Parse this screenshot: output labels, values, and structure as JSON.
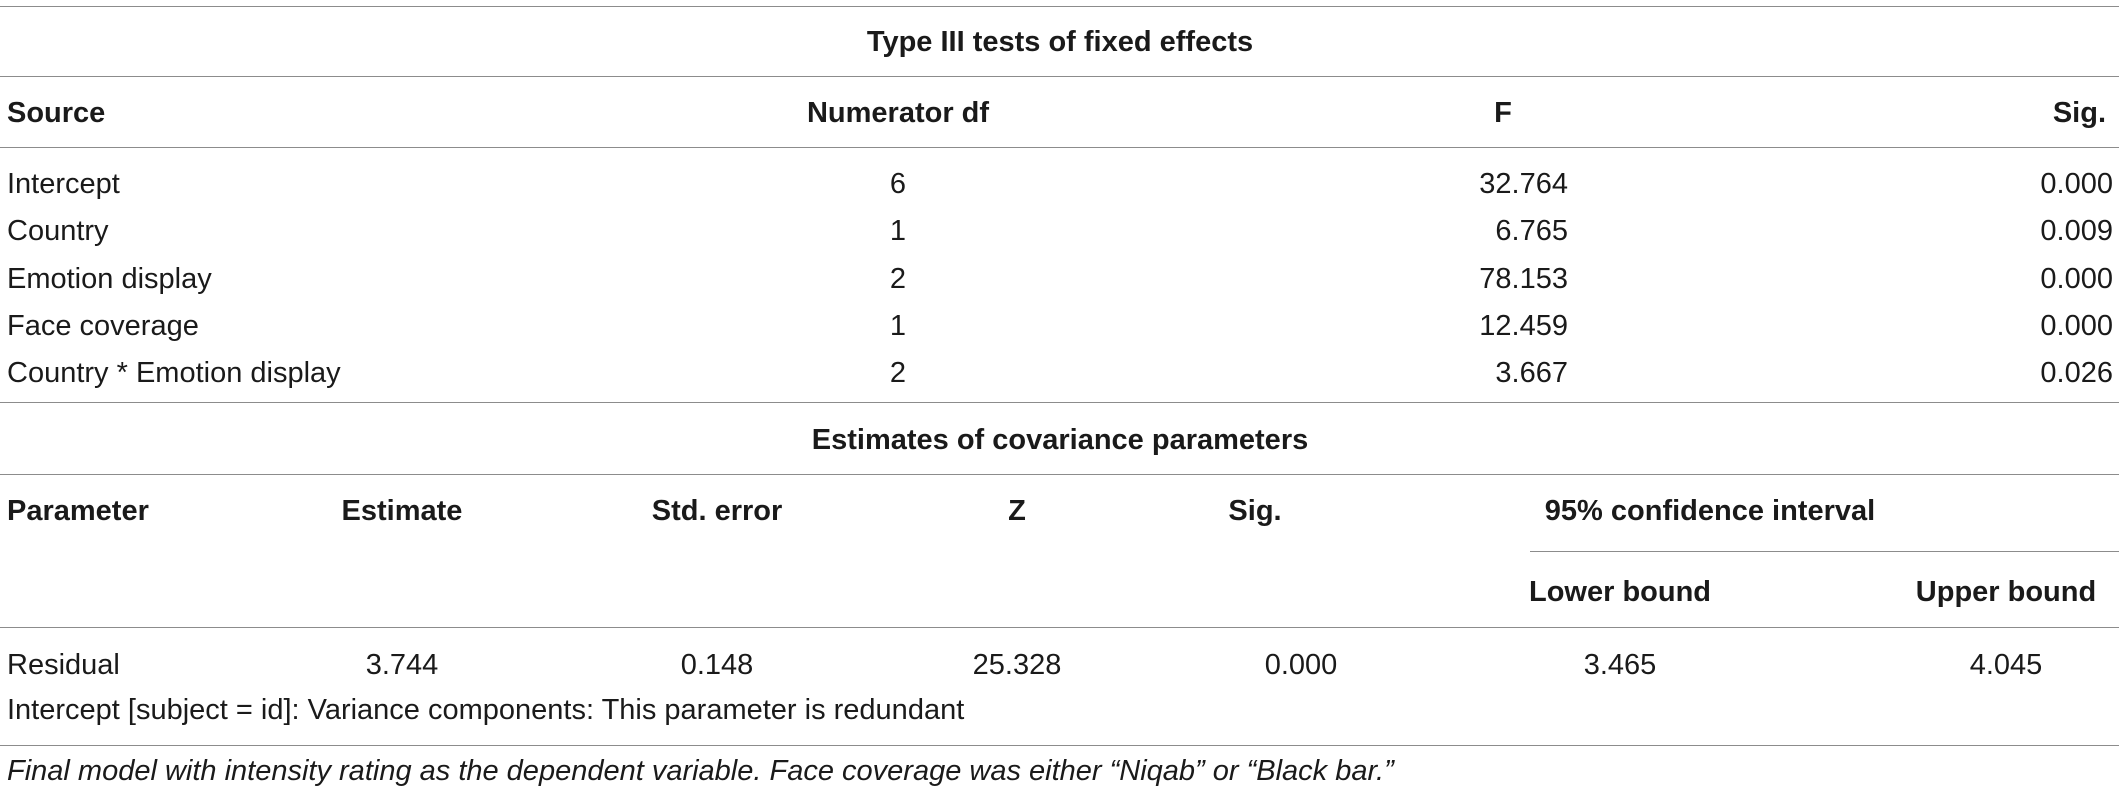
{
  "fixed_effects": {
    "title": "Type III tests of fixed effects",
    "headers": {
      "source": "Source",
      "numerator_df": "Numerator df",
      "f": "F",
      "sig": "Sig."
    },
    "rows": [
      {
        "source": "Intercept",
        "df": "6",
        "f": "32.764",
        "sig": "0.000"
      },
      {
        "source": "Country",
        "df": "1",
        "f": "6.765",
        "sig": "0.009"
      },
      {
        "source": "Emotion display",
        "df": "2",
        "f": "78.153",
        "sig": "0.000"
      },
      {
        "source": "Face coverage",
        "df": "1",
        "f": "12.459",
        "sig": "0.000"
      },
      {
        "source": "Country * Emotion display",
        "df": "2",
        "f": "3.667",
        "sig": "0.026"
      }
    ]
  },
  "covariance": {
    "title": "Estimates of covariance parameters",
    "headers": {
      "parameter": "Parameter",
      "estimate": "Estimate",
      "std_error": "Std. error",
      "z": "Z",
      "sig": "Sig.",
      "ci": "95% confidence interval",
      "lower": "Lower bound",
      "upper": "Upper bound"
    },
    "rows": [
      {
        "parameter": "Residual",
        "estimate": "3.744",
        "std_error": "0.148",
        "z": "25.328",
        "sig": "0.000",
        "lower": "3.465",
        "upper": "4.045"
      }
    ],
    "note": "Intercept [subject = id]: Variance components: This parameter is redundant"
  },
  "caption": "Final model with intensity rating as the dependent variable. Face coverage was either “Niqab” or “Black bar.”"
}
